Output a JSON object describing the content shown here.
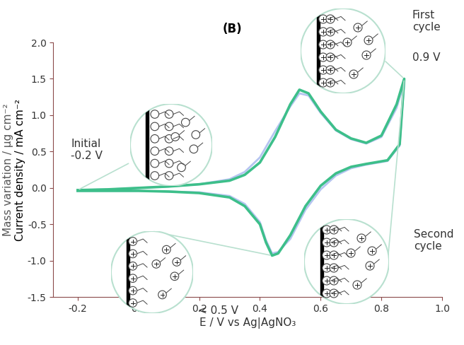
{
  "chart_data": {
    "type": "line",
    "title": "(B)",
    "x_label": "E / V vs Ag|AgNO₃",
    "y_labels": [
      "Mass variation / µg cm⁻²",
      "Current density / mA cm⁻²"
    ],
    "x": [
      -0.2,
      -0.1,
      0.0,
      0.1,
      0.2,
      0.3,
      0.35,
      0.4,
      0.45,
      0.5,
      0.53,
      0.56,
      0.6,
      0.65,
      0.7,
      0.75,
      0.8,
      0.85,
      0.875,
      0.86,
      0.82,
      0.75,
      0.7,
      0.65,
      0.6,
      0.55,
      0.5,
      0.46,
      0.44,
      0.42,
      0.4,
      0.35,
      0.3,
      0.2,
      0.1,
      0.0,
      -0.1,
      -0.2
    ],
    "series": [
      {
        "color": "#b5c4f0",
        "values": [
          -0.03,
          -0.02,
          0.0,
          0.02,
          0.05,
          0.12,
          0.22,
          0.42,
          0.78,
          1.12,
          1.3,
          1.27,
          1.03,
          0.79,
          0.67,
          0.61,
          0.7,
          1.1,
          1.45,
          0.58,
          0.37,
          0.32,
          0.27,
          0.17,
          -0.02,
          -0.3,
          -0.7,
          -0.88,
          -0.9,
          -0.72,
          -0.47,
          -0.22,
          -0.11,
          -0.06,
          -0.05,
          -0.04,
          -0.04,
          -0.04
        ]
      },
      {
        "color": "#3dbf8a",
        "values": [
          -0.03,
          -0.02,
          0.0,
          0.02,
          0.05,
          0.1,
          0.18,
          0.35,
          0.7,
          1.15,
          1.35,
          1.3,
          1.05,
          0.8,
          0.68,
          0.62,
          0.72,
          1.15,
          1.5,
          0.6,
          0.38,
          0.33,
          0.29,
          0.2,
          0.03,
          -0.25,
          -0.65,
          -0.9,
          -0.93,
          -0.75,
          -0.5,
          -0.25,
          -0.13,
          -0.07,
          -0.05,
          -0.04,
          -0.04,
          -0.04
        ]
      }
    ],
    "xlim": [
      -0.28,
      1.0
    ],
    "xticks": [
      -0.2,
      0.0,
      0.2,
      0.4,
      0.6,
      0.8,
      1.0
    ],
    "ylim": [
      -1.5,
      2.0
    ],
    "yticks": [
      -1.5,
      -1.0,
      -0.5,
      0.0,
      0.5,
      1.0,
      1.5,
      2.0
    ],
    "grid": false,
    "annotations": [
      "Initial\n-0.2 V",
      "First\ncycle",
      "0.9 V",
      "Second\ncycle",
      "< 0.5 V"
    ]
  }
}
